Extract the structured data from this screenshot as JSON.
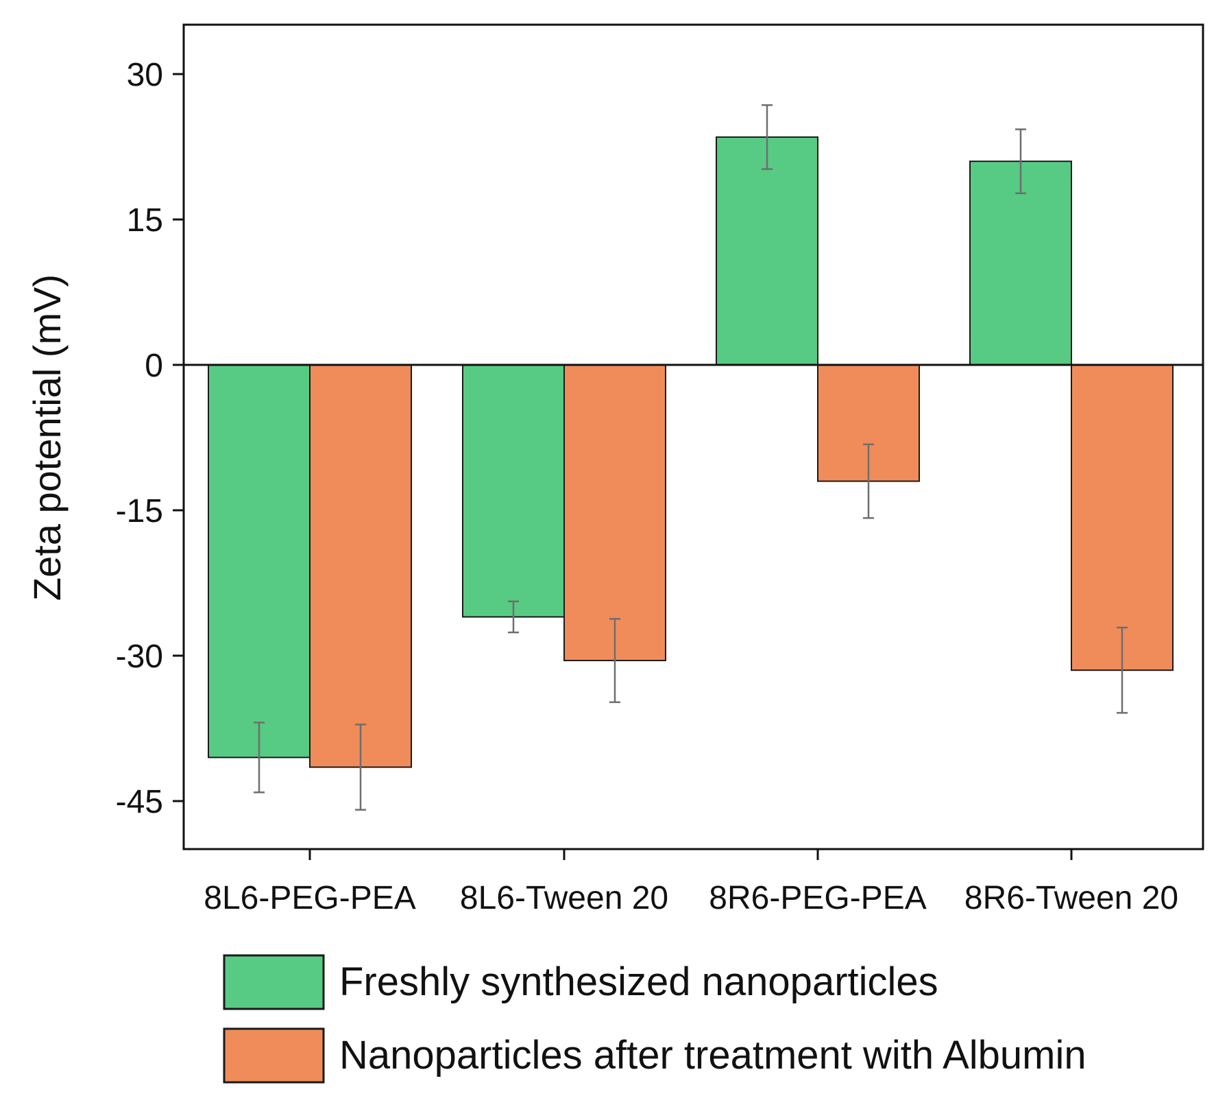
{
  "chart_data": {
    "type": "bar",
    "title": "",
    "xlabel": "",
    "ylabel": "Zeta potential (mV)",
    "ylim": [
      -50,
      35
    ],
    "yticks": [
      30,
      15,
      0,
      -15,
      -30,
      -45
    ],
    "ytick_labels": [
      "30",
      "15",
      "0",
      "-15",
      "-30",
      "-45"
    ],
    "categories": [
      "8L6-PEG-PEA",
      "8L6-Tween 20",
      "8R6-PEG-PEA",
      "8R6-Tween 20"
    ],
    "series": [
      {
        "name": "Freshly synthesized nanoparticles",
        "color": "#57cb84",
        "values": [
          -40.5,
          -26.0,
          23.5,
          21.0
        ],
        "errors": [
          3.6,
          1.6,
          3.3,
          3.3
        ]
      },
      {
        "name": "Nanoparticles after treatment with Albumin",
        "color": "#f08c5a",
        "values": [
          -41.5,
          -30.5,
          -12.0,
          -31.5
        ],
        "errors": [
          4.4,
          4.3,
          3.8,
          4.4
        ]
      }
    ],
    "legend_position": "bottom",
    "grid": false
  }
}
